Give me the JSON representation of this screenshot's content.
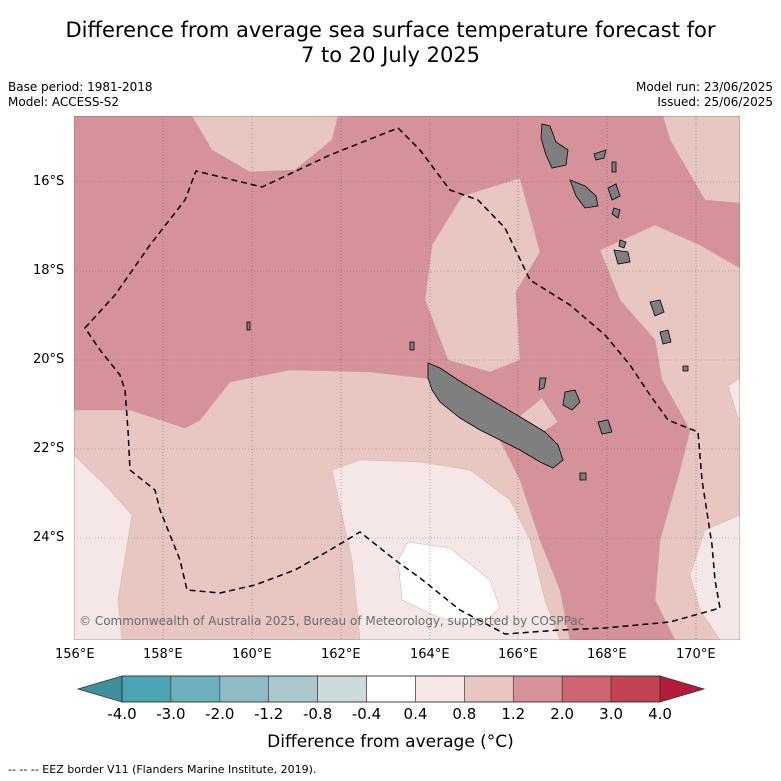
{
  "title": {
    "line1": "Difference from average sea surface temperature forecast for",
    "line2": "7 to 20 July 2025"
  },
  "meta": {
    "base_period": "Base period: 1981-2018",
    "model": "Model: ACCESS-S2",
    "model_run": "Model run: 23/06/2025",
    "issued": "Issued: 25/06/2025"
  },
  "map": {
    "lon_range": [
      156,
      171
    ],
    "lat_range": [
      -26.3,
      -14.5
    ],
    "lon_ticks": [
      "156°E",
      "158°E",
      "160°E",
      "162°E",
      "164°E",
      "166°E",
      "168°E",
      "170°E"
    ],
    "lat_ticks": [
      "16°S",
      "18°S",
      "20°S",
      "22°S",
      "24°S"
    ],
    "credit": "© Commonwealth of Australia 2025, Bureau of Meteorology, supported by COSPPac"
  },
  "colorbar": {
    "title": "Difference from average (°C)",
    "tick_labels": [
      "-4.0",
      "-3.0",
      "-2.0",
      "-1.2",
      "-0.8",
      "-0.4",
      "0.4",
      "0.8",
      "1.2",
      "2.0",
      "3.0",
      "4.0"
    ],
    "colors": [
      "#4ba4b4",
      "#6cb0bd",
      "#8ebbc5",
      "#abc9cd",
      "#cddadb",
      "#ffffff",
      "#f5e7e6",
      "#e8c6c1",
      "#d6929a",
      "#cb6672",
      "#c24454"
    ],
    "extend_low_color": "#3f8f9d",
    "extend_high_color": "#b51c3a"
  },
  "legend_footnote": "--  --  -- EEZ border V11 (Flanders Marine Institute, 2019).",
  "colors": {
    "land": "#7f7f7f",
    "anomaly_0_4_to_0_8": "#f5e7e6",
    "anomaly_0_8_to_1_2": "#e8c6c1",
    "anomaly_1_2_to_2_0": "#d6929a",
    "anomaly_below_0_4": "#ffffff"
  }
}
